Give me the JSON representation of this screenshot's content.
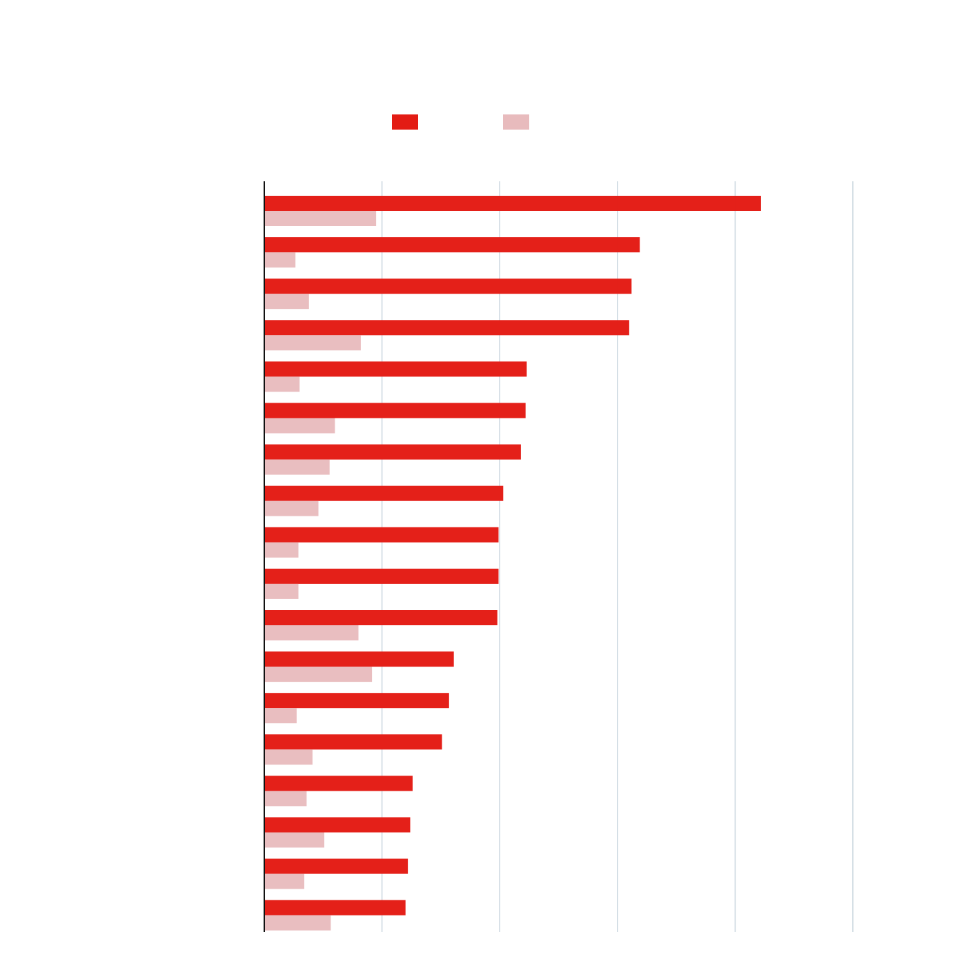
{
  "chart_data": {
    "type": "bar",
    "orientation": "horizontal",
    "title": "",
    "xlabel": "",
    "ylabel": "",
    "xlim": [
      0,
      100
    ],
    "grid": true,
    "gridline_values": [
      20,
      40,
      60,
      80,
      100
    ],
    "legend": "top-center",
    "categories": [
      "",
      "",
      "",
      "",
      "",
      "",
      "",
      "",
      "",
      "",
      "",
      "",
      "",
      "",
      "",
      "",
      "",
      ""
    ],
    "series": [
      {
        "name": "",
        "color": "#e31c14",
        "values": [
          84.4,
          63.8,
          62.4,
          62.0,
          44.6,
          44.4,
          43.6,
          40.6,
          39.8,
          39.8,
          39.6,
          32.2,
          31.4,
          30.2,
          25.2,
          24.8,
          24.4,
          24.0
        ]
      },
      {
        "name": "",
        "color": "#e8bbbd",
        "values": [
          19.0,
          5.3,
          7.6,
          16.4,
          6.0,
          12.0,
          11.1,
          9.2,
          5.8,
          5.8,
          16.0,
          18.3,
          5.5,
          8.2,
          7.2,
          10.2,
          6.8,
          11.3
        ]
      }
    ]
  }
}
